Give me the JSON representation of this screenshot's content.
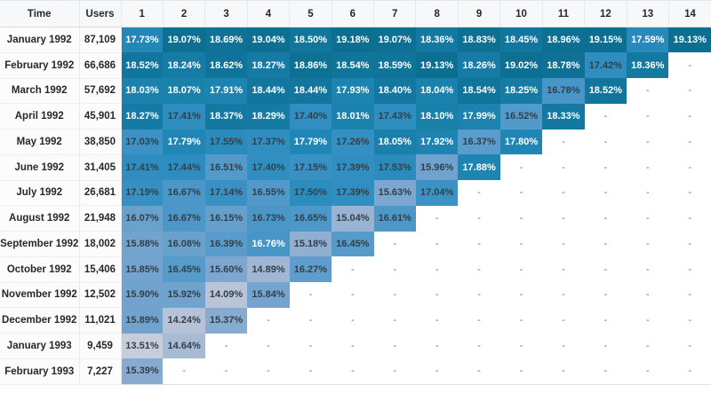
{
  "chart_data": {
    "type": "heatmap",
    "columns": [
      "Time",
      "Users",
      "1",
      "2",
      "3",
      "4",
      "5",
      "6",
      "7",
      "8",
      "9",
      "10",
      "11",
      "12",
      "13",
      "14"
    ],
    "empty_cell_text": "-",
    "rows": [
      {
        "time": "January 1992",
        "users": "87,109",
        "values": [
          "17.73%",
          "19.07%",
          "18.69%",
          "19.04%",
          "18.50%",
          "19.18%",
          "19.07%",
          "18.36%",
          "18.83%",
          "18.45%",
          "18.96%",
          "19.15%",
          "17.59%",
          "19.13%"
        ]
      },
      {
        "time": "February 1992",
        "users": "66,686",
        "values": [
          "18.52%",
          "18.24%",
          "18.62%",
          "18.27%",
          "18.86%",
          "18.54%",
          "18.59%",
          "19.13%",
          "18.26%",
          "19.02%",
          "18.78%",
          "17.42%",
          "18.36%"
        ]
      },
      {
        "time": "March 1992",
        "users": "57,692",
        "values": [
          "18.03%",
          "18.07%",
          "17.91%",
          "18.44%",
          "18.44%",
          "17.93%",
          "18.40%",
          "18.04%",
          "18.54%",
          "18.25%",
          "16.78%",
          "18.52%"
        ]
      },
      {
        "time": "April 1992",
        "users": "45,901",
        "values": [
          "18.27%",
          "17.41%",
          "18.37%",
          "18.29%",
          "17.40%",
          "18.01%",
          "17.43%",
          "18.10%",
          "17.99%",
          "16.52%",
          "18.33%"
        ]
      },
      {
        "time": "May 1992",
        "users": "38,850",
        "values": [
          "17.03%",
          "17.79%",
          "17.55%",
          "17.37%",
          "17.79%",
          "17.26%",
          "18.05%",
          "17.92%",
          "16.37%",
          "17.80%"
        ]
      },
      {
        "time": "June 1992",
        "users": "31,405",
        "values": [
          "17.41%",
          "17.44%",
          "16.51%",
          "17.40%",
          "17.15%",
          "17.39%",
          "17.53%",
          "15.96%",
          "17.88%"
        ]
      },
      {
        "time": "July 1992",
        "users": "26,681",
        "values": [
          "17.19%",
          "16.67%",
          "17.14%",
          "16.55%",
          "17.50%",
          "17.39%",
          "15.63%",
          "17.04%"
        ]
      },
      {
        "time": "August 1992",
        "users": "21,948",
        "values": [
          "16.07%",
          "16.67%",
          "16.15%",
          "16.73%",
          "16.65%",
          "15.04%",
          "16.61%"
        ]
      },
      {
        "time": "September 1992",
        "users": "18,002",
        "values": [
          "15.88%",
          "16.08%",
          "16.39%",
          "16.76%",
          "15.18%",
          "16.45%"
        ]
      },
      {
        "time": "October 1992",
        "users": "15,406",
        "values": [
          "15.85%",
          "16.45%",
          "15.60%",
          "14.89%",
          "16.27%"
        ]
      },
      {
        "time": "November 1992",
        "users": "12,502",
        "values": [
          "15.90%",
          "15.92%",
          "14.09%",
          "15.84%"
        ]
      },
      {
        "time": "December 1992",
        "users": "11,021",
        "values": [
          "15.89%",
          "14.24%",
          "15.37%"
        ]
      },
      {
        "time": "January 1993",
        "users": "9,459",
        "values": [
          "13.51%",
          "14.64%"
        ]
      },
      {
        "time": "February 1993",
        "users": "7,227",
        "values": [
          "15.39%"
        ]
      }
    ]
  },
  "colors": {
    "scale": [
      [
        13.5,
        "#c7ced9"
      ],
      [
        14.25,
        "#b5c2d7"
      ],
      [
        14.9,
        "#a0b6d3"
      ],
      [
        15.4,
        "#86aad0"
      ],
      [
        16.0,
        "#6da2ce"
      ],
      [
        16.5,
        "#539aca"
      ],
      [
        17.0,
        "#3d92c4"
      ],
      [
        17.45,
        "#2e8dc0"
      ],
      [
        17.8,
        "#2086b5"
      ],
      [
        18.1,
        "#1980aa"
      ],
      [
        18.45,
        "#12769e"
      ],
      [
        18.7,
        "#0f7296"
      ],
      [
        19.2,
        "#0c6e90"
      ]
    ],
    "white_text_threshold": 17.55,
    "white_text_extra_cells": [
      [
        8,
        3
      ]
    ],
    "white_text": "#ffffff",
    "dark_text": "#333f48",
    "header_bg": "#f6f8fa",
    "border": "#e4e7ea",
    "dash_color": "#6a737d"
  }
}
